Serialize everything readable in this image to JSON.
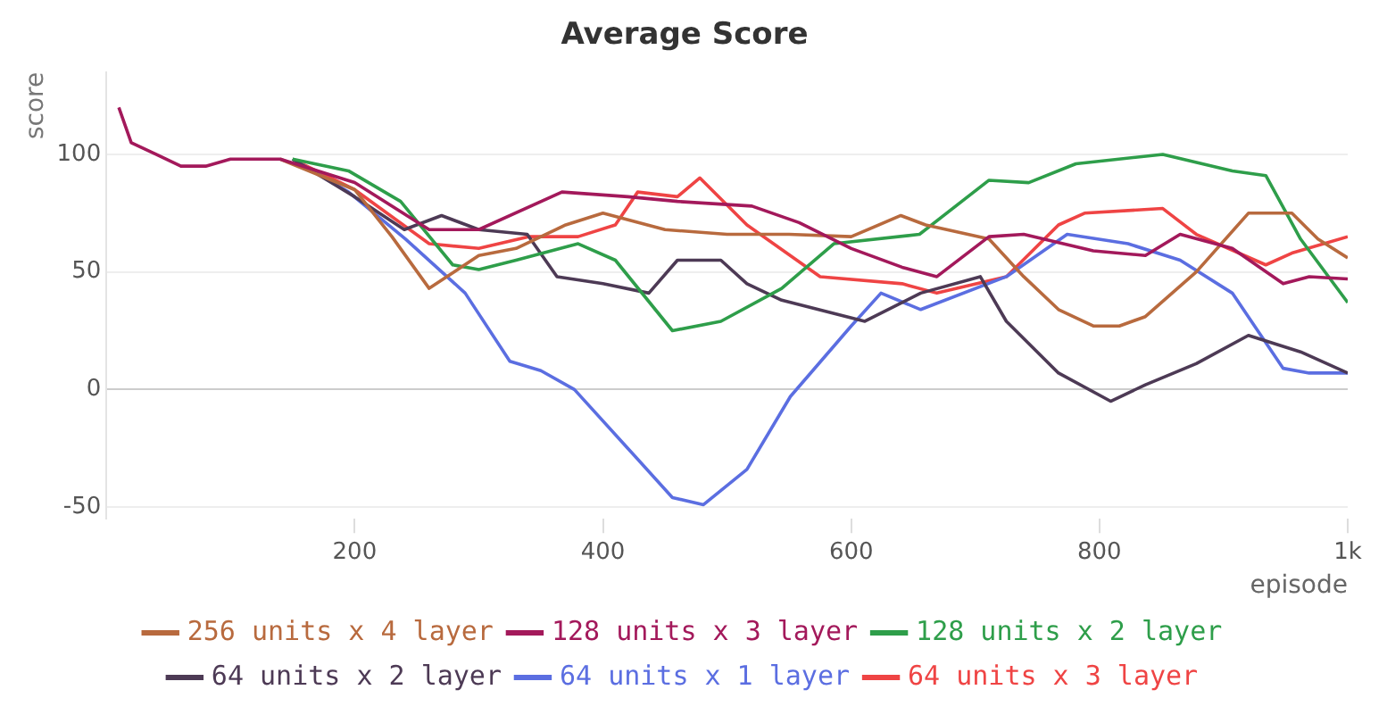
{
  "chart_data": {
    "type": "line",
    "title": "Average Score",
    "xlabel": "episode",
    "ylabel": "score",
    "xlim": [
      0,
      1000
    ],
    "xticks": [
      200,
      400,
      600,
      800,
      {
        "value": 1000,
        "label": "1k"
      }
    ],
    "ylim": [
      -55,
      135
    ],
    "yticks": [
      -50,
      0,
      50,
      100
    ],
    "grid": "y",
    "legend": "bottom",
    "line_style": "solid",
    "marker": "none",
    "series": [
      {
        "name": "256 units x 4 layer",
        "color": "#b86a3e",
        "x": [
          140,
          200,
          230,
          260,
          280,
          300,
          330,
          370,
          400,
          450,
          500,
          550,
          600,
          640,
          660,
          711,
          739,
          767,
          795,
          816,
          837,
          878,
          920,
          955,
          976,
          1000
        ],
        "values": [
          98,
          85,
          65,
          43,
          50,
          57,
          60,
          70,
          75,
          68,
          66,
          66,
          65,
          74,
          70,
          64,
          48,
          34,
          27,
          27,
          31,
          50,
          75,
          75,
          64,
          56
        ]
      },
      {
        "name": "128 units x 3 layer",
        "color": "#a3195b",
        "x": [
          10,
          20,
          40,
          60,
          80,
          100,
          140,
          200,
          260,
          300,
          367,
          420,
          460,
          520,
          558,
          600,
          641,
          669,
          711,
          739,
          795,
          837,
          865,
          907,
          948,
          969,
          1000
        ],
        "values": [
          120,
          105,
          100,
          95,
          95,
          98,
          98,
          88,
          68,
          68,
          84,
          82,
          80,
          78,
          71,
          60,
          52,
          48,
          65,
          66,
          59,
          57,
          66,
          60,
          45,
          48,
          47
        ]
      },
      {
        "name": "128 units x 2 layer",
        "color": "#2e9e4a",
        "x": [
          150,
          195,
          237,
          279,
          300,
          330,
          380,
          410,
          456,
          495,
          544,
          586,
          655,
          711,
          743,
          781,
          851,
          907,
          934,
          962,
          1000
        ],
        "values": [
          98,
          93,
          80,
          53,
          51,
          55,
          62,
          55,
          25,
          29,
          43,
          62,
          66,
          89,
          88,
          96,
          100,
          93,
          91,
          64,
          37
        ]
      },
      {
        "name": "64 units x 2 layer",
        "color": "#4d3a55",
        "x": [
          150,
          200,
          240,
          270,
          300,
          339,
          363,
          400,
          437,
          460,
          495,
          516,
          544,
          611,
          656,
          704,
          725,
          767,
          809,
          837,
          878,
          920,
          962,
          1000
        ],
        "values": [
          98,
          82,
          68,
          74,
          68,
          66,
          48,
          45,
          41,
          55,
          55,
          45,
          38,
          29,
          41,
          48,
          29,
          7,
          -5,
          2,
          11,
          23,
          16,
          7
        ]
      },
      {
        "name": "64 units x 1 layer",
        "color": "#5b6ee1",
        "x": [
          150,
          195,
          241,
          289,
          325,
          350,
          377,
          420,
          456,
          481,
          516,
          551,
          600,
          624,
          656,
          725,
          774,
          823,
          865,
          907,
          948,
          969,
          1000
        ],
        "values": [
          98,
          84,
          64,
          41,
          12,
          8,
          0,
          -25,
          -46,
          -49,
          -34,
          -3,
          27,
          41,
          34,
          48,
          66,
          62,
          55,
          41,
          9,
          7,
          7
        ]
      },
      {
        "name": "64 units x 3 layer",
        "color": "#ef4444",
        "x": [
          150,
          200,
          260,
          300,
          340,
          380,
          410,
          428,
          460,
          478,
          516,
          575,
          641,
          669,
          725,
          767,
          788,
          851,
          878,
          934,
          955,
          1000
        ],
        "values": [
          98,
          85,
          62,
          60,
          65,
          65,
          70,
          84,
          82,
          90,
          70,
          48,
          45,
          41,
          48,
          70,
          75,
          77,
          66,
          53,
          58,
          65
        ]
      }
    ]
  }
}
